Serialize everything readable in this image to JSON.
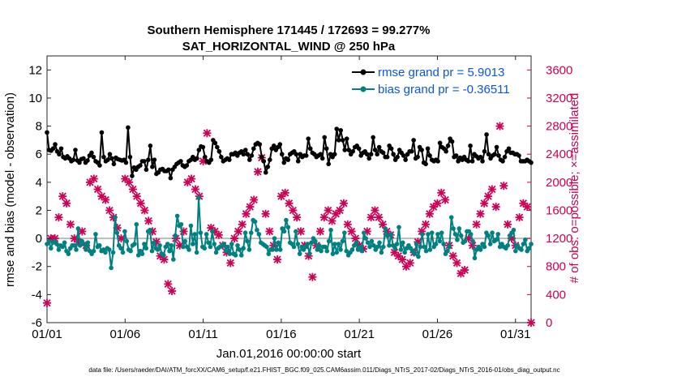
{
  "chart_data": {
    "type": "line",
    "title_line1": "Southern Hemisphere 171445 / 172693 = 99.277%",
    "title_line2": "SAT_HORIZONTAL_WIND @ 250 hPa",
    "xlabel": "Jan.01,2016 00:00:00 start",
    "ylabel_left": "rmse and bias (model - observation)",
    "ylabel_right": "# of obs: o=possible; ×=assimilated",
    "footer": "data file: /Users/raeder/DAI/ATM_forcXX/CAM6_setup/f.e21.FHIST_BGC.f09_025.CAM6assim.011/Diags_NTrS_2017-02/Diags_NTrS_2016-01/obs_diag_output.nc",
    "x_tick_labels": [
      "01/01",
      "01/06",
      "01/11",
      "01/16",
      "01/21",
      "01/26",
      "01/31"
    ],
    "x_tick_days": [
      1,
      6,
      11,
      16,
      21,
      26,
      31
    ],
    "xlim": [
      1,
      32
    ],
    "ylim_left": [
      -6,
      13
    ],
    "yticks_left": [
      "-6",
      "-4",
      "-2",
      "0",
      "2",
      "4",
      "6",
      "8",
      "10",
      "12"
    ],
    "ylim_right": [
      0,
      3800
    ],
    "yticks_right": [
      "0",
      "400",
      "800",
      "1200",
      "1600",
      "2000",
      "2400",
      "2800",
      "3200",
      "3600"
    ],
    "colors": {
      "rmse": "#000000",
      "bias": "#008080",
      "obs": "#cc0055",
      "zero_line": "#bbbbbb",
      "legend_text": "#0a55e0"
    },
    "legend": [
      {
        "label": "rmse grand pr = 5.9013"
      },
      {
        "label": "bias grand pr = -0.36511"
      }
    ],
    "rmse": [
      7.55,
      6.3,
      6.25,
      6.4,
      6.7,
      6.2,
      6.0,
      6.4,
      5.8,
      5.7,
      5.85,
      5.7,
      5.5,
      5.6,
      6.3,
      5.55,
      5.4,
      5.65,
      5.7,
      5.4,
      5.55,
      5.9,
      6.1,
      5.8,
      5.5,
      5.4,
      5.2,
      7.55,
      5.8,
      5.5,
      5.6,
      6.0,
      5.7,
      5.3,
      5.75,
      5.65,
      5.6,
      5.55,
      5.6,
      5.4,
      7.9,
      5.8,
      4.45,
      5.05,
      4.9,
      5.1,
      5.2,
      5.5,
      5.5,
      4.9,
      5.6,
      6.6,
      5.1,
      5.6,
      4.6,
      4.7,
      4.9,
      4.95,
      4.8,
      4.8,
      4.9,
      4.3,
      4.9,
      5.1,
      5.3,
      5.4,
      5.5,
      5.2,
      5.1,
      5.2,
      5.5,
      5.6,
      5.8,
      5.6,
      5.7,
      6.3,
      6.55,
      6.5,
      5.8,
      5.5,
      5.4,
      5.6,
      7.0,
      6.8,
      6.5,
      6.2,
      5.8,
      5.5,
      5.6,
      5.7,
      5.6,
      6.0,
      6.0,
      6.1,
      5.9,
      6.1,
      6.2,
      6.0,
      6.3,
      6.0,
      5.6,
      5.9,
      6.4,
      6.7,
      6.8,
      6.7,
      5.8,
      5.5,
      4.7,
      5.1,
      5.6,
      6.4,
      6.6,
      6.3,
      6.5,
      6.7,
      6.0,
      5.4,
      5.7,
      5.6,
      6.0,
      6.1,
      6.2,
      6.0,
      5.5,
      6.0,
      5.8,
      5.9,
      5.9,
      7.1,
      6.4,
      6.1,
      6.0,
      5.8,
      5.9,
      6.0,
      5.7,
      7.2,
      6.4,
      5.3,
      6.0,
      5.8,
      6.0,
      7.8,
      7.0,
      7.7,
      7.0,
      6.3,
      7.1,
      6.3,
      6.0,
      6.2,
      6.5,
      6.6,
      6.4,
      5.9,
      6.1,
      6.2,
      6.0,
      5.7,
      6.0,
      7.2,
      6.3,
      6.0,
      6.5,
      6.2,
      6.1,
      5.8,
      5.8,
      6.6,
      6.4,
      6.0,
      5.6,
      5.8,
      6.3,
      6.1,
      5.9,
      5.6,
      6.0,
      6.2,
      6.2,
      7.0,
      5.7,
      5.8,
      6.5,
      6.3,
      5.4,
      5.3,
      6.4,
      5.9,
      5.6,
      5.5,
      5.6,
      5.5,
      6.8,
      6.5,
      6.4,
      6.2,
      6.6,
      7.1,
      6.9,
      5.8,
      5.9,
      5.5,
      5.75,
      5.6,
      5.8,
      5.6,
      5.5,
      6.6,
      5.5,
      6.0,
      5.85,
      5.7,
      5.8,
      5.5,
      6.2,
      7.4,
      6.0,
      5.7,
      5.9,
      6.0,
      6.5,
      5.9,
      5.6,
      5.5,
      5.8,
      6.2,
      6.4,
      6.1,
      6.1,
      6.0,
      6.0,
      5.9,
      5.5,
      5.5,
      5.5,
      5.6,
      5.5,
      5.4
    ],
    "bias": [
      -0.4,
      -0.2,
      -0.7,
      -0.3,
      -0.2,
      -0.4,
      -0.8,
      -0.5,
      -0.6,
      -0.3,
      -0.9,
      -1.1,
      -0.7,
      -0.5,
      -0.5,
      -0.8,
      0.7,
      -0.5,
      -0.2,
      -0.4,
      -0.8,
      -0.3,
      -0.9,
      -1.1,
      -0.9,
      0.3,
      -0.6,
      -0.5,
      -0.9,
      -0.8,
      -1.0,
      -0.7,
      -0.8,
      -2.1,
      -1.0,
      1.5,
      0.4,
      -0.5,
      -0.7,
      -1.0,
      0.5,
      -0.2,
      -0.8,
      -0.9,
      -0.5,
      -0.4,
      1.0,
      -1.2,
      -0.9,
      -1.1,
      -0.4,
      -0.7,
      0.5,
      0.6,
      -0.9,
      -0.3,
      -0.7,
      -0.8,
      -0.5,
      -1.1,
      -1.2,
      -0.6,
      -0.4,
      -0.9,
      -0.5,
      -1.5,
      0.2,
      1.6,
      0.9,
      1.0,
      -0.6,
      -0.2,
      -0.6,
      -0.8,
      0.9,
      -0.4,
      0.3,
      -1.0,
      2.9,
      0.4,
      -0.6,
      -0.7,
      0.3,
      -0.3,
      -0.6,
      0.5,
      -0.4,
      -1.0,
      -0.7,
      -0.6,
      -0.5,
      -0.4,
      -0.9,
      -0.6,
      -1.1,
      -0.4,
      -1.1,
      -1.2,
      -0.5,
      -0.8,
      -1.2,
      -0.7,
      0.4,
      -0.2,
      -0.8,
      0.4,
      1.3,
      1.2,
      0.6,
      0.3,
      -0.3,
      -0.4,
      -0.5,
      -0.6,
      -1.1,
      -0.8,
      -0.8,
      0.0,
      -0.8,
      -0.3,
      -0.8,
      0.7,
      0.5,
      1.3,
      0.8,
      -0.3,
      -0.4,
      -0.6,
      0.5,
      -0.4,
      -1.1,
      -0.6,
      -0.8,
      -0.6,
      -0.4,
      -1.1,
      -0.3,
      0.0,
      -0.2,
      -0.8,
      -0.5,
      -0.9,
      -0.6,
      -0.6,
      -0.9,
      -0.2,
      0.6,
      -1.1,
      -0.4,
      -1.0,
      -0.4,
      -0.8,
      -0.2,
      0.4,
      -0.9,
      -1.2,
      -1.0,
      -0.8,
      -0.5,
      -0.3,
      -0.8,
      -0.6,
      -0.9,
      0.4,
      0.0,
      -0.3,
      -0.6,
      -0.2,
      -0.5,
      -0.8,
      -0.6,
      -0.3,
      -1.0,
      -0.6,
      0.7,
      0.2,
      -0.5,
      0.3,
      -0.5,
      -0.7,
      -0.4,
      0.8,
      -0.8,
      -0.3,
      -1.0,
      -0.7,
      -0.5,
      -0.7,
      -0.9,
      -1.1,
      -0.4,
      -1.3,
      -0.6,
      0.3,
      -0.6,
      -0.9,
      0.3,
      -0.8,
      0.4,
      -0.6,
      -0.4,
      0.3,
      -0.2,
      0.4,
      -0.4,
      -1.1,
      -0.9,
      -0.6,
      1.5,
      0.7,
      0.3,
      -0.1,
      0.7,
      0.2,
      -0.3,
      -0.2,
      0.5,
      0.5,
      0.3,
      -0.2,
      -1.4,
      -0.8,
      -0.6,
      -0.8,
      -0.4,
      -0.6,
      0.4,
      0.2,
      -0.4,
      0.4,
      -0.2,
      -0.1,
      0.3,
      -0.6,
      -0.4,
      -0.6,
      -0.7,
      -0.5,
      0.2,
      0.4,
      0.6,
      -0.9,
      -0.5,
      -0.7,
      -0.8,
      -0.4,
      -0.1,
      -0.9,
      -0.7,
      -0.4
    ],
    "obs_assimilated": [
      [
        1.0,
        280
      ],
      [
        1.25,
        1200
      ],
      [
        1.5,
        1200
      ],
      [
        1.75,
        1500
      ],
      [
        2.0,
        1800
      ],
      [
        2.25,
        1700
      ],
      [
        2.5,
        1400
      ],
      [
        2.75,
        1200
      ],
      [
        3.0,
        1150
      ],
      [
        3.25,
        1300
      ],
      [
        3.5,
        1100
      ],
      [
        3.75,
        2000
      ],
      [
        4.0,
        2050
      ],
      [
        4.25,
        1900
      ],
      [
        4.5,
        1800
      ],
      [
        4.75,
        1750
      ],
      [
        5.0,
        1600
      ],
      [
        5.25,
        1500
      ],
      [
        5.5,
        1350
      ],
      [
        5.75,
        1200
      ],
      [
        6.0,
        2050
      ],
      [
        6.25,
        2000
      ],
      [
        6.5,
        1900
      ],
      [
        6.75,
        1800
      ],
      [
        7.0,
        1700
      ],
      [
        7.25,
        1600
      ],
      [
        7.5,
        1450
      ],
      [
        7.75,
        1300
      ],
      [
        8.0,
        1150
      ],
      [
        8.25,
        950
      ],
      [
        8.5,
        900
      ],
      [
        8.75,
        550
      ],
      [
        9.0,
        450
      ],
      [
        9.25,
        1200
      ],
      [
        9.5,
        1100
      ],
      [
        9.75,
        1300
      ],
      [
        10.0,
        2000
      ],
      [
        10.25,
        2050
      ],
      [
        10.5,
        1900
      ],
      [
        10.75,
        1800
      ],
      [
        11.0,
        2300
      ],
      [
        11.25,
        2700
      ],
      [
        11.5,
        1350
      ],
      [
        11.75,
        1300
      ],
      [
        12.0,
        1250
      ],
      [
        12.25,
        1100
      ],
      [
        12.5,
        1000
      ],
      [
        12.75,
        850
      ],
      [
        13.0,
        1200
      ],
      [
        13.25,
        1300
      ],
      [
        13.5,
        1400
      ],
      [
        13.75,
        1550
      ],
      [
        14.0,
        1650
      ],
      [
        14.25,
        1750
      ],
      [
        14.5,
        2150
      ],
      [
        14.75,
        2350
      ],
      [
        15.0,
        1550
      ],
      [
        15.25,
        1300
      ],
      [
        15.5,
        1100
      ],
      [
        15.75,
        900
      ],
      [
        16.0,
        1800
      ],
      [
        16.25,
        1850
      ],
      [
        16.5,
        1700
      ],
      [
        16.75,
        1600
      ],
      [
        17.0,
        1500
      ],
      [
        17.25,
        1300
      ],
      [
        17.5,
        1100
      ],
      [
        17.75,
        950
      ],
      [
        18.0,
        650
      ],
      [
        18.25,
        1100
      ],
      [
        18.5,
        1300
      ],
      [
        18.75,
        1500
      ],
      [
        19.0,
        1600
      ],
      [
        19.25,
        1450
      ],
      [
        19.5,
        1550
      ],
      [
        19.75,
        1600
      ],
      [
        20.0,
        1700
      ],
      [
        20.25,
        1400
      ],
      [
        20.5,
        1300
      ],
      [
        20.75,
        1200
      ],
      [
        21.0,
        1100
      ],
      [
        21.25,
        1050
      ],
      [
        21.5,
        1300
      ],
      [
        21.75,
        1500
      ],
      [
        22.0,
        1600
      ],
      [
        22.25,
        1500
      ],
      [
        22.5,
        1400
      ],
      [
        22.75,
        1300
      ],
      [
        23.0,
        1250
      ],
      [
        23.25,
        1000
      ],
      [
        23.5,
        950
      ],
      [
        23.75,
        900
      ],
      [
        24.0,
        800
      ],
      [
        24.25,
        850
      ],
      [
        24.5,
        1000
      ],
      [
        24.75,
        1150
      ],
      [
        25.0,
        1300
      ],
      [
        25.25,
        1400
      ],
      [
        25.5,
        1550
      ],
      [
        25.75,
        1650
      ],
      [
        26.0,
        1700
      ],
      [
        26.25,
        1850
      ],
      [
        26.5,
        1750
      ],
      [
        26.75,
        1100
      ],
      [
        27.0,
        950
      ],
      [
        27.25,
        850
      ],
      [
        27.5,
        700
      ],
      [
        27.75,
        750
      ],
      [
        28.0,
        1200
      ],
      [
        28.25,
        1100
      ],
      [
        28.5,
        1400
      ],
      [
        28.75,
        1550
      ],
      [
        29.0,
        1700
      ],
      [
        29.25,
        1800
      ],
      [
        29.5,
        1900
      ],
      [
        29.75,
        1650
      ],
      [
        30.0,
        2800
      ],
      [
        30.25,
        1950
      ],
      [
        30.5,
        1400
      ],
      [
        30.75,
        1200
      ],
      [
        31.0,
        1100
      ],
      [
        31.25,
        1500
      ],
      [
        31.5,
        1700
      ],
      [
        31.75,
        1650
      ],
      [
        32.0,
        0
      ]
    ]
  }
}
